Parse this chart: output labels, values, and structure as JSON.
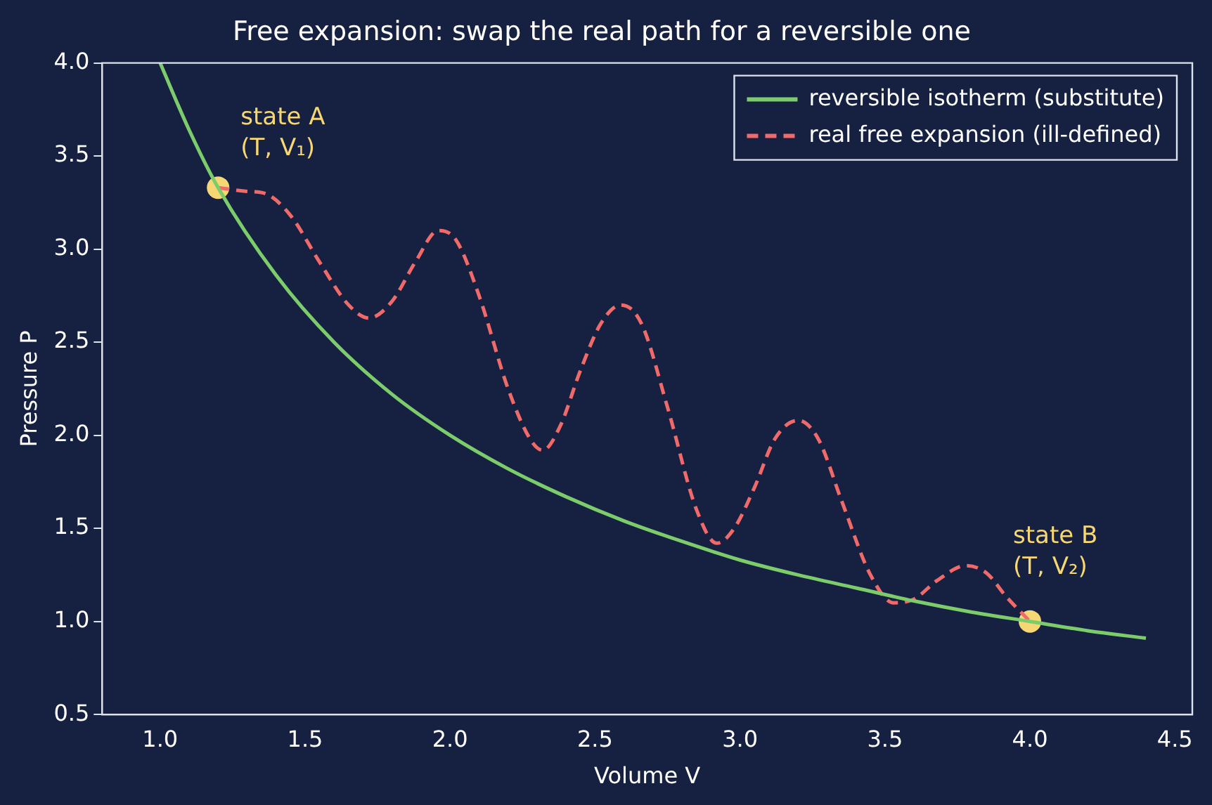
{
  "chart_data": {
    "type": "line",
    "title": "Free expansion: swap the real path for a reversible one",
    "xlabel": "Volume V",
    "ylabel": "Pressure P",
    "xlim": [
      0.8,
      4.56
    ],
    "xticks": [
      {
        "value": 1,
        "label": "1.0"
      },
      1.5,
      {
        "value": 2,
        "label": "2.0"
      },
      2.5,
      {
        "value": 3,
        "label": "3.0"
      },
      3.5,
      {
        "value": 4,
        "label": "4.0"
      },
      4.5
    ],
    "ylim": [
      0.5,
      4.0
    ],
    "yticks": [
      0.5,
      {
        "value": 1,
        "label": "1.0"
      },
      1.5,
      {
        "value": 2,
        "label": "2.0"
      },
      2.5,
      {
        "value": 3,
        "label": "3.0"
      },
      3.5,
      {
        "value": 4,
        "label": "4.0"
      }
    ],
    "grid": false,
    "legend": "top right",
    "series": [
      {
        "name": "reversible isotherm (substitute)",
        "line_style": "solid",
        "marker": "none",
        "color": "#7ccc6c",
        "x": [
          1.0,
          1.1,
          1.2,
          1.4,
          1.6,
          1.8,
          2.0,
          2.2,
          2.4,
          2.6,
          2.8,
          3.0,
          3.2,
          3.4,
          3.6,
          3.8,
          4.0,
          4.2,
          4.4
        ],
        "values": [
          4.0,
          3.64,
          3.33,
          2.86,
          2.5,
          2.22,
          2.0,
          1.82,
          1.67,
          1.54,
          1.43,
          1.33,
          1.25,
          1.18,
          1.11,
          1.05,
          1.0,
          0.95,
          0.91
        ]
      },
      {
        "name": "real free expansion (ill-defined)",
        "line_style": "dashed",
        "marker": "none",
        "color": "#f06a6a",
        "x": [
          1.2,
          1.3,
          1.36,
          1.45,
          1.55,
          1.65,
          1.72,
          1.8,
          1.88,
          1.96,
          2.02,
          2.1,
          2.2,
          2.28,
          2.32,
          2.38,
          2.45,
          2.52,
          2.59,
          2.66,
          2.75,
          2.85,
          2.92,
          2.98,
          3.05,
          3.12,
          3.2,
          3.27,
          3.35,
          3.45,
          3.53,
          3.6,
          3.68,
          3.78,
          3.85,
          3.92,
          4.0
        ],
        "values": [
          3.33,
          3.31,
          3.3,
          3.18,
          2.93,
          2.7,
          2.63,
          2.72,
          2.93,
          3.1,
          3.05,
          2.75,
          2.25,
          1.97,
          1.92,
          2.05,
          2.35,
          2.6,
          2.7,
          2.6,
          2.15,
          1.6,
          1.42,
          1.5,
          1.72,
          1.98,
          2.08,
          1.98,
          1.65,
          1.25,
          1.1,
          1.12,
          1.22,
          1.3,
          1.26,
          1.13,
          1.0
        ]
      },
      {
        "type": "scatter",
        "marker": "circle",
        "color": "#f7d774",
        "x": [
          1.2,
          4.0
        ],
        "values": [
          3.33,
          1.0
        ]
      }
    ],
    "annotations": [
      {
        "text": "state A\n(T, V₁)",
        "x": 1.2,
        "y": 3.33
      },
      {
        "text": "state B\n(T, V₂)",
        "x": 4.0,
        "y": 1.0
      }
    ]
  }
}
